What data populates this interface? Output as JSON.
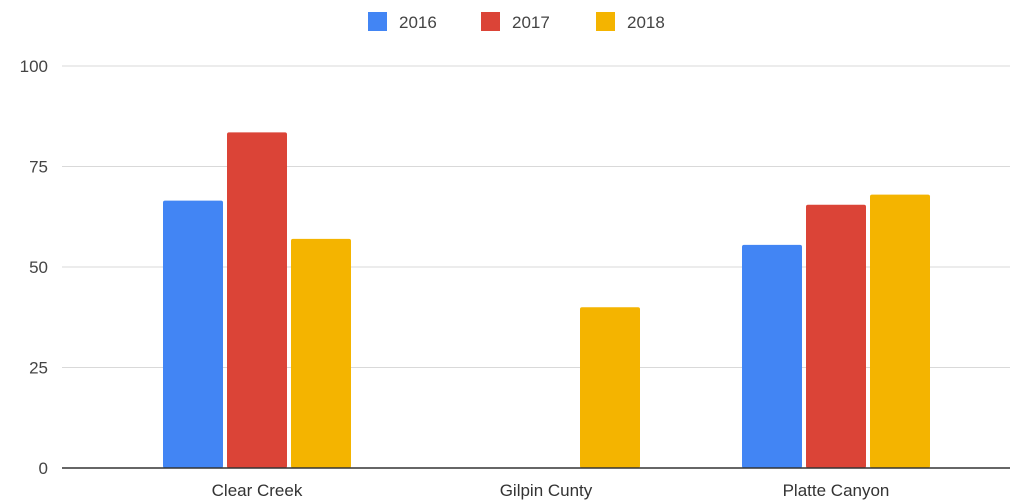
{
  "chart_data": {
    "type": "bar",
    "categories": [
      "Clear Creek",
      "Gilpin Cunty",
      "Platte Canyon"
    ],
    "series": [
      {
        "name": "2016",
        "color": "#4285f4",
        "values": [
          66.5,
          null,
          55.5
        ]
      },
      {
        "name": "2017",
        "color": "#db4437",
        "values": [
          83.5,
          null,
          65.5
        ]
      },
      {
        "name": "2018",
        "color": "#f4b400",
        "values": [
          57,
          40,
          68
        ]
      }
    ],
    "yticks": [
      "0",
      "25",
      "50",
      "75",
      "100"
    ],
    "ylim": [
      0,
      100
    ],
    "grid": true,
    "legend_position": "top-center",
    "gridline_color": "#d9d9d9",
    "baseline_color": "#333333"
  }
}
